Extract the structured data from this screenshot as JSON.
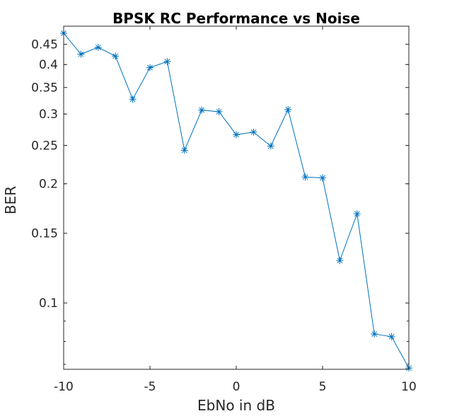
{
  "chart_data": {
    "type": "line",
    "title": "BPSK RC Performance vs Noise",
    "xlabel": "EbNo in dB",
    "ylabel": "BER",
    "yscale": "log",
    "xlim": [
      -10,
      10
    ],
    "ylim": [
      0.068,
      0.5
    ],
    "xticks": [
      -10,
      -5,
      0,
      5,
      10
    ],
    "xtick_labels": [
      "-10",
      "-5",
      "0",
      "5",
      "10"
    ],
    "yticks": [
      0.1,
      0.15,
      0.2,
      0.25,
      0.3,
      0.35,
      0.4,
      0.45
    ],
    "ytick_labels": [
      "0.1",
      "0.15",
      "0.2",
      "0.25",
      "0.3",
      "0.35",
      "0.4",
      "0.45"
    ],
    "grid": false,
    "marker": "asterisk",
    "series_color": "#0072bd",
    "series": [
      {
        "name": "BER",
        "x": [
          -10,
          -9,
          -8,
          -7,
          -6,
          -5,
          -4,
          -3,
          -2,
          -1,
          0,
          1,
          2,
          3,
          4,
          5,
          6,
          7,
          8,
          9,
          10
        ],
        "y": [
          0.48,
          0.425,
          0.442,
          0.42,
          0.327,
          0.393,
          0.407,
          0.243,
          0.307,
          0.304,
          0.266,
          0.27,
          0.249,
          0.308,
          0.208,
          0.207,
          0.128,
          0.168,
          0.0835,
          0.0822,
          0.0685
        ]
      }
    ]
  }
}
